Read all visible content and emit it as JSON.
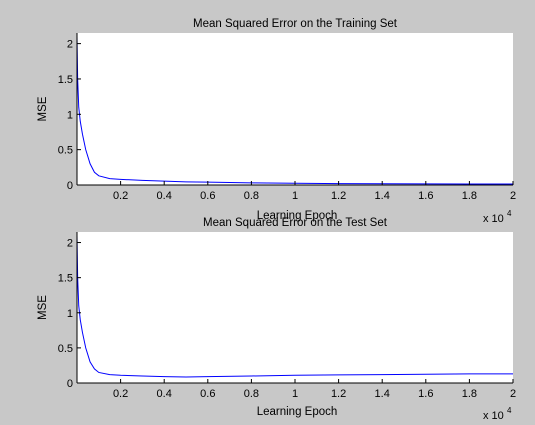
{
  "figure": {
    "background": "#c8c8c8",
    "axes_background": "#ffffff",
    "line_color": "#0000ff"
  },
  "chart_data": [
    {
      "type": "line",
      "title": "Mean Squared Error on the Training Set",
      "xlabel": "Learning Epoch",
      "ylabel": "MSE",
      "x_multiplier": "x 10",
      "x_multiplier_exp": "4",
      "xlim": [
        0,
        20000
      ],
      "ylim": [
        0,
        2.15
      ],
      "xticks": [
        2000,
        4000,
        6000,
        8000,
        10000,
        12000,
        14000,
        16000,
        18000,
        20000
      ],
      "xtick_labels": [
        "0.2",
        "0.4",
        "0.6",
        "0.8",
        "1",
        "1.2",
        "1.4",
        "1.6",
        "1.8",
        "2"
      ],
      "yticks": [
        0,
        0.5,
        1,
        1.5,
        2
      ],
      "ytick_labels": [
        "0",
        "0.5",
        "1",
        "1.5",
        "2"
      ],
      "grid": false,
      "series": [
        {
          "color": "#0000ff",
          "x": [
            0,
            30,
            80,
            150,
            250,
            400,
            600,
            800,
            1000,
            1500,
            2000,
            3000,
            4000,
            5000,
            6000,
            8000,
            10000,
            12000,
            14000,
            16000,
            18000,
            20000
          ],
          "y": [
            2.1,
            1.5,
            1.1,
            0.9,
            0.72,
            0.5,
            0.3,
            0.18,
            0.13,
            0.09,
            0.08,
            0.065,
            0.055,
            0.045,
            0.04,
            0.03,
            0.025,
            0.02,
            0.018,
            0.016,
            0.015,
            0.015
          ]
        }
      ]
    },
    {
      "type": "line",
      "title": "Mean Squared Error on the Test Set",
      "xlabel": "Learning Epoch",
      "ylabel": "MSE",
      "x_multiplier": "x 10",
      "x_multiplier_exp": "4",
      "xlim": [
        0,
        20000
      ],
      "ylim": [
        0,
        2.15
      ],
      "xticks": [
        2000,
        4000,
        6000,
        8000,
        10000,
        12000,
        14000,
        16000,
        18000,
        20000
      ],
      "xtick_labels": [
        "0.2",
        "0.4",
        "0.6",
        "0.8",
        "1",
        "1.2",
        "1.4",
        "1.6",
        "1.8",
        "2"
      ],
      "yticks": [
        0,
        0.5,
        1,
        1.5,
        2
      ],
      "ytick_labels": [
        "0",
        "0.5",
        "1",
        "1.5",
        "2"
      ],
      "grid": false,
      "series": [
        {
          "color": "#0000ff",
          "x": [
            0,
            30,
            80,
            150,
            250,
            400,
            600,
            800,
            1000,
            1500,
            2000,
            3000,
            4000,
            5000,
            6000,
            8000,
            10000,
            12000,
            14000,
            16000,
            18000,
            20000
          ],
          "y": [
            2.1,
            1.5,
            1.1,
            0.9,
            0.72,
            0.5,
            0.3,
            0.2,
            0.15,
            0.12,
            0.11,
            0.1,
            0.09,
            0.085,
            0.09,
            0.1,
            0.11,
            0.115,
            0.12,
            0.125,
            0.13,
            0.13
          ]
        }
      ]
    }
  ]
}
